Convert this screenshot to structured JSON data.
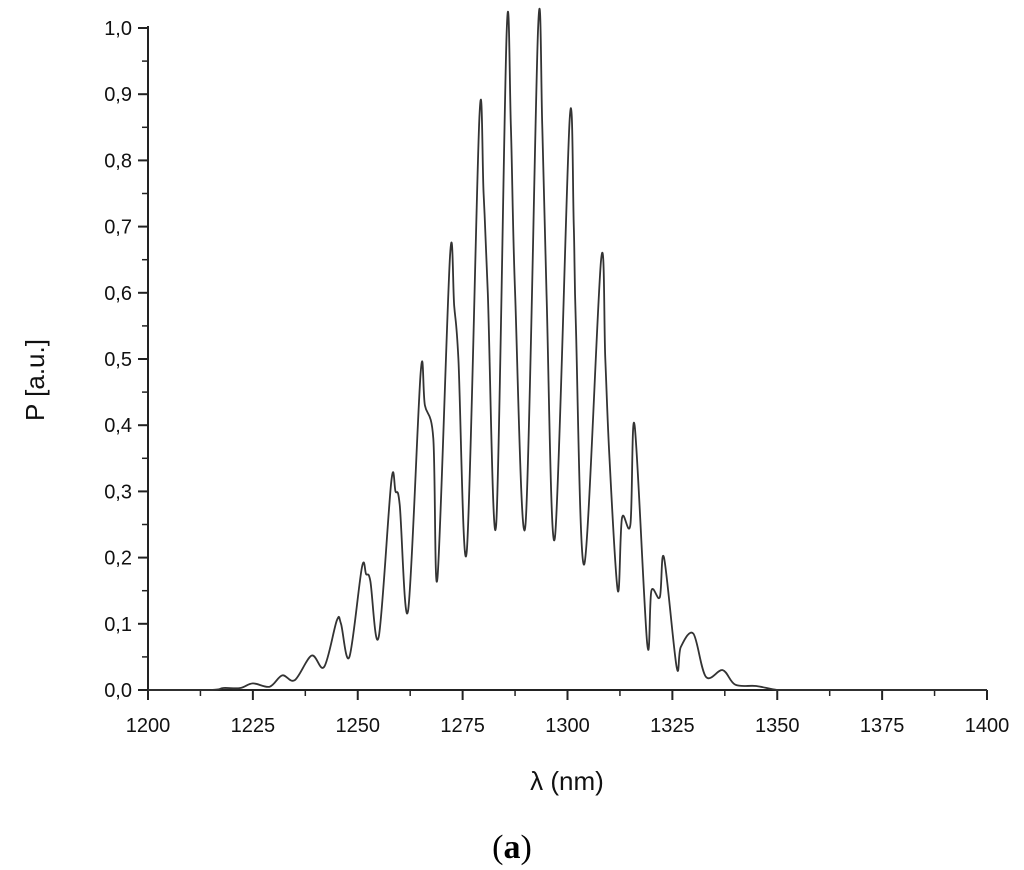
{
  "chart_data": {
    "type": "line",
    "xlabel": "λ (nm)",
    "ylabel": "P [a.u.]",
    "panel_label": "(a)",
    "panel_label_parts": [
      "(",
      "a",
      ")"
    ],
    "xlim": [
      1200,
      1400
    ],
    "ylim": [
      0.0,
      1.0
    ],
    "x_ticks": [
      1200,
      1225,
      1250,
      1275,
      1300,
      1325,
      1350,
      1375,
      1400
    ],
    "x_tick_labels": [
      "1200",
      "1225",
      "1250",
      "1275",
      "1300",
      "1325",
      "1350",
      "1375",
      "1400"
    ],
    "y_ticks": [
      0.0,
      0.1,
      0.2,
      0.3,
      0.4,
      0.5,
      0.6,
      0.7,
      0.8,
      0.9,
      1.0
    ],
    "y_tick_labels": [
      "0,0",
      "0,1",
      "0,2",
      "0,3",
      "0,4",
      "0,5",
      "0,6",
      "0,7",
      "0,8",
      "0,9",
      "1,0"
    ],
    "grid": false,
    "line_color": "#333333",
    "series": [
      {
        "x": [
          1200,
          1215,
          1218,
          1222,
          1225,
          1229,
          1232,
          1235,
          1239,
          1242,
          1245,
          1246,
          1248,
          1251,
          1252,
          1253,
          1255,
          1258,
          1259,
          1260,
          1262,
          1265,
          1266,
          1268,
          1269,
          1272,
          1273,
          1274,
          1276,
          1279,
          1280,
          1281,
          1283,
          1285.5,
          1286.5,
          1287.5,
          1290,
          1293,
          1294,
          1295,
          1297,
          1300.5,
          1301.5,
          1302,
          1304,
          1308,
          1309,
          1310,
          1312,
          1313,
          1315,
          1316,
          1319,
          1320,
          1322,
          1323,
          1326,
          1327,
          1330,
          1333,
          1337,
          1340,
          1345,
          1350,
          1355,
          1400
        ],
        "y": [
          0.0,
          0.0,
          0.003,
          0.003,
          0.01,
          0.005,
          0.022,
          0.015,
          0.052,
          0.035,
          0.105,
          0.1,
          0.05,
          0.185,
          0.175,
          0.165,
          0.08,
          0.315,
          0.3,
          0.28,
          0.12,
          0.48,
          0.43,
          0.38,
          0.17,
          0.655,
          0.58,
          0.5,
          0.21,
          0.865,
          0.75,
          0.6,
          0.25,
          0.995,
          0.85,
          0.6,
          0.25,
          1.0,
          0.85,
          0.6,
          0.23,
          0.86,
          0.7,
          0.55,
          0.19,
          0.65,
          0.5,
          0.35,
          0.15,
          0.26,
          0.25,
          0.4,
          0.07,
          0.15,
          0.14,
          0.2,
          0.035,
          0.065,
          0.085,
          0.02,
          0.03,
          0.008,
          0.006,
          0.0,
          0.0,
          0.0
        ]
      }
    ]
  }
}
